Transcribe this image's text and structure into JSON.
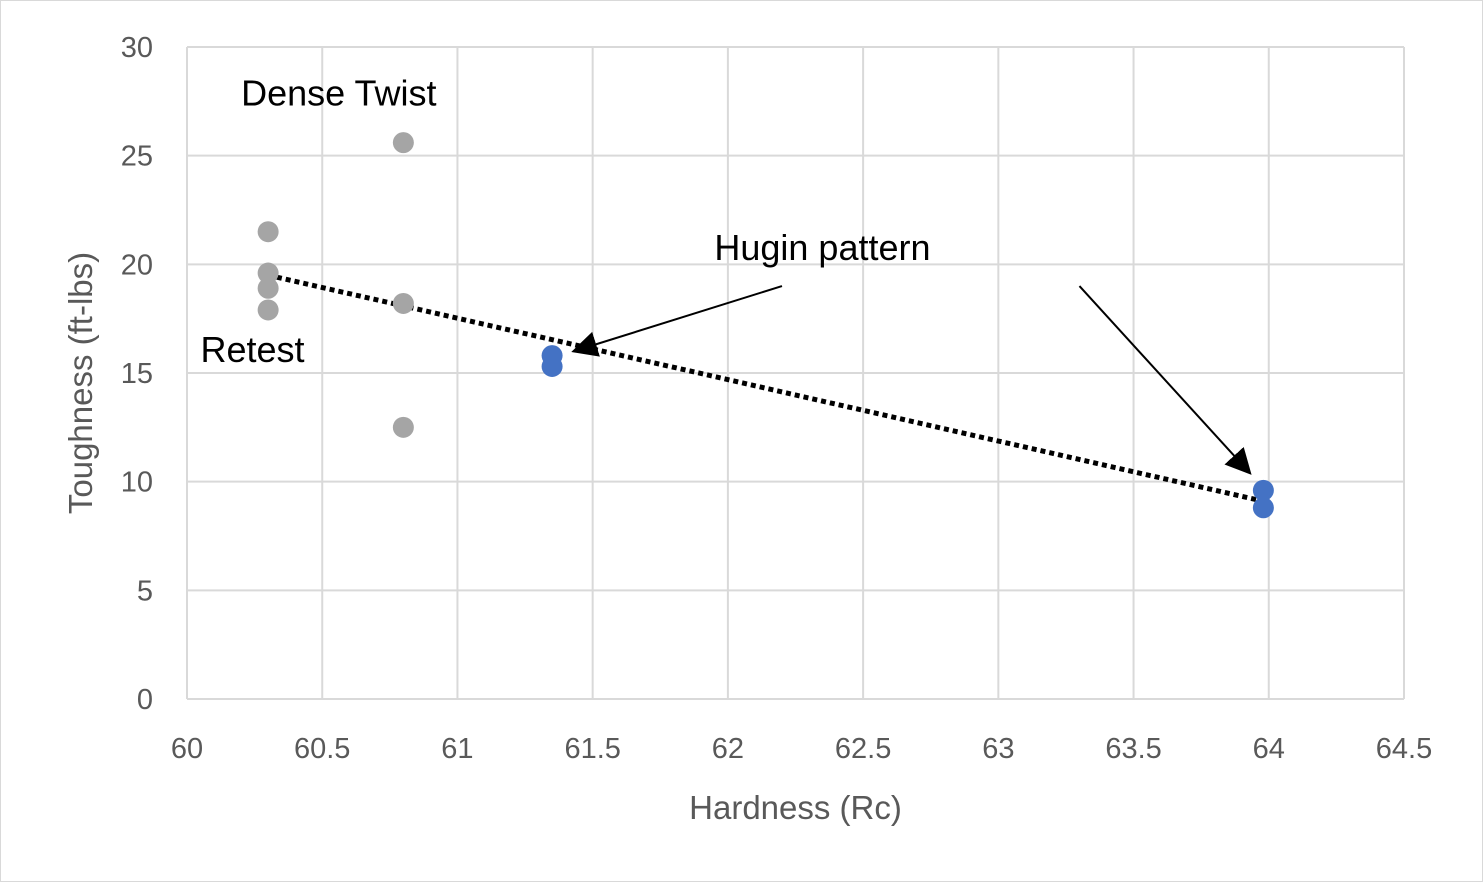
{
  "chart_data": {
    "type": "scatter",
    "title": "",
    "xlabel": "Hardness (Rc)",
    "ylabel": "Toughness (ft-lbs)",
    "xlim": [
      60,
      64.5
    ],
    "ylim": [
      0,
      30
    ],
    "x_ticks": [
      "60",
      "60.5",
      "61",
      "61.5",
      "62",
      "62.5",
      "63",
      "63.5",
      "64",
      "64.5"
    ],
    "y_ticks": [
      "0",
      "5",
      "10",
      "15",
      "20",
      "25",
      "30"
    ],
    "grid": true,
    "legend": "none",
    "series": [
      {
        "color": "#a5a5a5",
        "points": [
          {
            "x": 60.3,
            "y": 21.5
          },
          {
            "x": 60.3,
            "y": 19.6
          },
          {
            "x": 60.3,
            "y": 18.9
          },
          {
            "x": 60.3,
            "y": 17.9
          },
          {
            "x": 60.8,
            "y": 25.6
          },
          {
            "x": 60.8,
            "y": 18.2
          },
          {
            "x": 60.8,
            "y": 12.5
          }
        ]
      },
      {
        "color": "#4472c4",
        "points": [
          {
            "x": 61.35,
            "y": 15.8
          },
          {
            "x": 61.35,
            "y": 15.3
          },
          {
            "x": 63.98,
            "y": 9.6
          },
          {
            "x": 63.98,
            "y": 8.8
          }
        ]
      }
    ],
    "trendline": {
      "style": "dotted",
      "color": "#000000",
      "from": {
        "x": 60.3,
        "y": 19.5
      },
      "to": {
        "x": 63.98,
        "y": 9.1
      }
    },
    "annotations": [
      {
        "text": "Dense Twist",
        "x": 60.2,
        "y": 27.3
      },
      {
        "text": "Retest",
        "x": 60.05,
        "y": 15.5
      },
      {
        "text": "Hugin pattern",
        "x": 61.95,
        "y": 20.2,
        "arrows": [
          {
            "from": {
              "x": 62.2,
              "y": 19.0
            },
            "to": {
              "x": 61.43,
              "y": 16.0
            }
          },
          {
            "from": {
              "x": 63.3,
              "y": 19.0
            },
            "to": {
              "x": 63.93,
              "y": 10.4
            }
          }
        ]
      }
    ],
    "colors": {
      "grid": "#d9d9d9",
      "tick_text": "#595959",
      "annotation": "#000000"
    }
  }
}
